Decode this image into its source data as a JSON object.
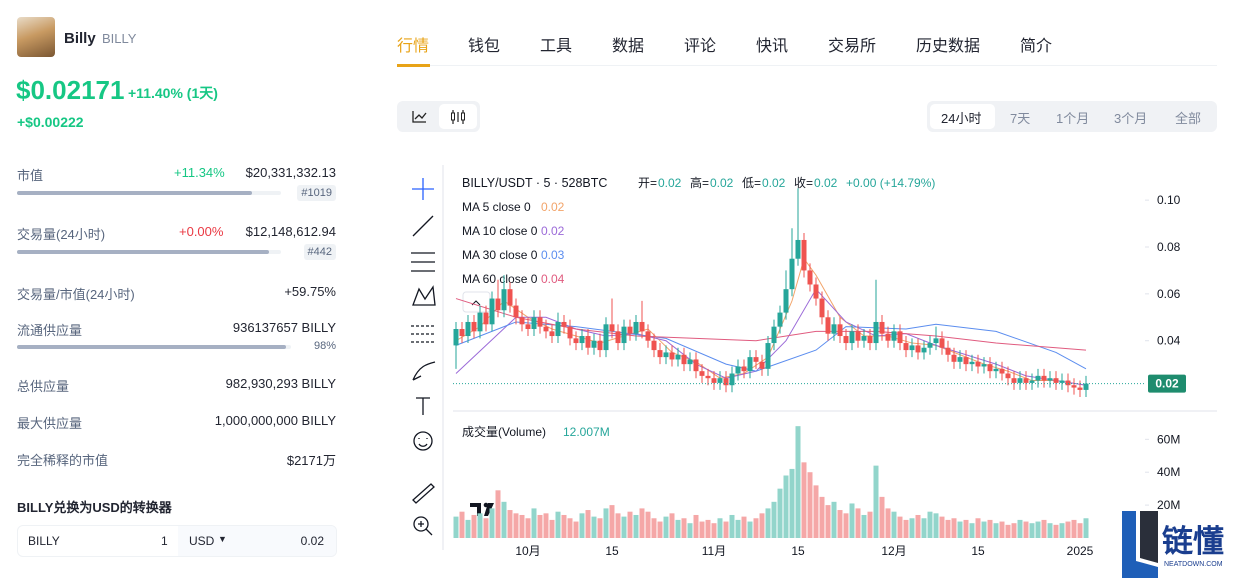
{
  "coin": {
    "name": "Billy",
    "symbol": "BILLY",
    "price": "$0.02171",
    "change": "+11.40% (1天)",
    "change_abs": "+$0.00222"
  },
  "stats": [
    {
      "label": "市值",
      "change": "+11.34%",
      "value": "$20,331,332.13",
      "rank": "#1019"
    },
    {
      "label": "交易量(24小时)",
      "change": "+0.00%",
      "value": "$12,148,612.94",
      "rank": "#442"
    },
    {
      "label": "交易量/市值(24小时)",
      "value": "+59.75%"
    },
    {
      "label": "流通供应量",
      "value": "936137657 BILLY",
      "percent": {
        "value": 98,
        "label": "98%"
      }
    },
    {
      "label": "总供应量",
      "value": "982,930,293 BILLY"
    },
    {
      "label": "最大供应量",
      "value": "1,000,000,000 BILLY"
    },
    {
      "label": "完全稀释的市值",
      "value": "$2171万"
    }
  ],
  "converter": {
    "title": "BILLY兑换为USD的转换器",
    "from": "BILLY",
    "amount": "1",
    "to": "USD",
    "result": "0.02"
  },
  "tabs": [
    "行情",
    "钱包",
    "工具",
    "数据",
    "评论",
    "快讯",
    "交易所",
    "历史数据",
    "简介"
  ],
  "ranges": [
    "24小时",
    "7天",
    "1个月",
    "3个月",
    "全部"
  ],
  "watermark": {
    "title": "链懂",
    "sub": "NEATDOWN.COM"
  },
  "chart_data": {
    "type": "candlestick",
    "title": "BILLY/USDT · 5 · 528BTC",
    "ohlc": [
      {
        "label": "开=",
        "value": "0.02"
      },
      {
        "label": "高=",
        "value": "0.02"
      },
      {
        "label": "低=",
        "value": "0.02"
      },
      {
        "label": "收=",
        "value": "0.02"
      }
    ],
    "change": "+0.00 (+14.79%)",
    "last_label": "0.02",
    "up_color": "#26a69a",
    "down_color": "#ef5350",
    "volume_up_color": "#92d5cb",
    "volume_down_color": "#f5a7a7",
    "ylim": [
      0.01,
      0.115
    ],
    "yticks": [
      {
        "value": 0.1,
        "label": "0.10"
      },
      0.08,
      0.06,
      0.04
    ],
    "categories": [
      null,
      null,
      null,
      null,
      null,
      null,
      null,
      null,
      null,
      null,
      null,
      null,
      "10月",
      null,
      null,
      null,
      null,
      null,
      null,
      null,
      null,
      null,
      null,
      null,
      null,
      null,
      "15",
      null,
      null,
      null,
      null,
      null,
      null,
      null,
      null,
      null,
      null,
      null,
      null,
      null,
      null,
      null,
      null,
      "11月",
      null,
      null,
      null,
      null,
      null,
      null,
      null,
      null,
      null,
      null,
      null,
      null,
      null,
      "15",
      null,
      null,
      null,
      null,
      null,
      null,
      null,
      null,
      null,
      null,
      null,
      null,
      null,
      null,
      null,
      "12月",
      null,
      null,
      null,
      null,
      null,
      null,
      null,
      null,
      null,
      null,
      null,
      null,
      null,
      "15",
      null,
      null,
      null,
      null,
      null,
      null,
      null,
      null,
      null,
      null,
      null,
      null,
      null,
      null,
      null,
      null,
      "2025",
      null
    ],
    "open": [
      0.038,
      0.045,
      0.042,
      0.048,
      0.044,
      0.052,
      0.047,
      0.058,
      0.053,
      0.062,
      0.055,
      0.05,
      0.047,
      0.045,
      0.05,
      0.046,
      0.044,
      0.042,
      0.048,
      0.046,
      0.041,
      0.039,
      0.042,
      0.037,
      0.04,
      0.036,
      0.047,
      0.044,
      0.039,
      0.046,
      0.043,
      0.048,
      0.044,
      0.04,
      0.036,
      0.033,
      0.035,
      0.032,
      0.034,
      0.03,
      0.032,
      0.027,
      0.025,
      0.024,
      0.022,
      0.024,
      0.021,
      0.026,
      0.029,
      0.027,
      0.033,
      0.031,
      0.028,
      0.039,
      0.046,
      0.052,
      0.062,
      0.075,
      0.083,
      0.07,
      0.064,
      0.058,
      0.05,
      0.043,
      0.047,
      0.042,
      0.039,
      0.044,
      0.04,
      0.042,
      0.039,
      0.048,
      0.043,
      0.04,
      0.044,
      0.039,
      0.036,
      0.038,
      0.035,
      0.037,
      0.039,
      0.041,
      0.037,
      0.034,
      0.031,
      0.033,
      0.03,
      0.031,
      0.029,
      0.03,
      0.027,
      0.028,
      0.026,
      0.024,
      0.022,
      0.024,
      0.022,
      0.023,
      0.025,
      0.023,
      0.024,
      0.022,
      0.023,
      0.021,
      0.02,
      0.019
    ],
    "high": [
      0.048,
      0.048,
      0.051,
      0.051,
      0.055,
      0.055,
      0.061,
      0.066,
      0.068,
      0.065,
      0.058,
      0.053,
      0.05,
      0.053,
      0.053,
      0.049,
      0.047,
      0.052,
      0.051,
      0.049,
      0.044,
      0.045,
      0.045,
      0.043,
      0.043,
      0.05,
      0.058,
      0.047,
      0.049,
      0.049,
      0.051,
      0.057,
      0.047,
      0.043,
      0.039,
      0.038,
      0.038,
      0.037,
      0.037,
      0.035,
      0.035,
      0.03,
      0.028,
      0.027,
      0.027,
      0.027,
      0.029,
      0.032,
      0.032,
      0.036,
      0.036,
      0.034,
      0.042,
      0.049,
      0.055,
      0.07,
      0.088,
      0.105,
      0.086,
      0.073,
      0.067,
      0.061,
      0.053,
      0.05,
      0.05,
      0.045,
      0.047,
      0.047,
      0.045,
      0.045,
      0.066,
      0.051,
      0.046,
      0.047,
      0.047,
      0.042,
      0.041,
      0.041,
      0.04,
      0.042,
      0.046,
      0.044,
      0.04,
      0.037,
      0.036,
      0.036,
      0.034,
      0.034,
      0.033,
      0.033,
      0.031,
      0.031,
      0.029,
      0.027,
      0.027,
      0.027,
      0.026,
      0.028,
      0.028,
      0.027,
      0.027,
      0.026,
      0.026,
      0.024,
      0.023,
      0.025
    ],
    "low": [
      0.028,
      0.039,
      0.039,
      0.041,
      0.041,
      0.044,
      0.044,
      0.05,
      0.05,
      0.052,
      0.047,
      0.044,
      0.042,
      0.042,
      0.043,
      0.041,
      0.039,
      0.039,
      0.043,
      0.038,
      0.036,
      0.036,
      0.034,
      0.034,
      0.033,
      0.033,
      0.041,
      0.036,
      0.036,
      0.04,
      0.04,
      0.041,
      0.037,
      0.033,
      0.03,
      0.03,
      0.029,
      0.029,
      0.027,
      0.027,
      0.024,
      0.022,
      0.021,
      0.019,
      0.019,
      0.018,
      0.018,
      0.023,
      0.024,
      0.024,
      0.028,
      0.025,
      0.025,
      0.036,
      0.043,
      0.049,
      0.059,
      0.072,
      0.067,
      0.061,
      0.055,
      0.047,
      0.04,
      0.04,
      0.039,
      0.036,
      0.036,
      0.037,
      0.037,
      0.036,
      0.036,
      0.04,
      0.037,
      0.037,
      0.036,
      0.033,
      0.033,
      0.032,
      0.032,
      0.034,
      0.036,
      0.034,
      0.031,
      0.028,
      0.028,
      0.027,
      0.027,
      0.026,
      0.026,
      0.024,
      0.024,
      0.023,
      0.021,
      0.019,
      0.019,
      0.019,
      0.019,
      0.02,
      0.02,
      0.02,
      0.019,
      0.019,
      0.018,
      0.017,
      0.016,
      0.016
    ],
    "close": [
      0.045,
      0.042,
      0.048,
      0.044,
      0.052,
      0.047,
      0.058,
      0.053,
      0.062,
      0.055,
      0.05,
      0.047,
      0.045,
      0.05,
      0.046,
      0.044,
      0.042,
      0.048,
      0.046,
      0.041,
      0.039,
      0.042,
      0.037,
      0.04,
      0.036,
      0.047,
      0.044,
      0.039,
      0.046,
      0.043,
      0.048,
      0.044,
      0.04,
      0.036,
      0.033,
      0.035,
      0.032,
      0.034,
      0.03,
      0.032,
      0.027,
      0.025,
      0.024,
      0.022,
      0.024,
      0.021,
      0.026,
      0.029,
      0.027,
      0.033,
      0.031,
      0.028,
      0.039,
      0.046,
      0.052,
      0.062,
      0.075,
      0.083,
      0.07,
      0.064,
      0.058,
      0.05,
      0.043,
      0.047,
      0.042,
      0.039,
      0.044,
      0.04,
      0.042,
      0.039,
      0.048,
      0.043,
      0.04,
      0.044,
      0.039,
      0.036,
      0.038,
      0.035,
      0.037,
      0.039,
      0.041,
      0.037,
      0.034,
      0.031,
      0.033,
      0.03,
      0.031,
      0.029,
      0.03,
      0.027,
      0.028,
      0.026,
      0.024,
      0.022,
      0.024,
      0.022,
      0.023,
      0.025,
      0.023,
      0.024,
      0.022,
      0.023,
      0.021,
      0.02,
      0.019,
      0.0217
    ],
    "ma": [
      {
        "name": "MA 5 close 0",
        "last": 0.02,
        "color": "#f2a46a",
        "x": [
          0,
          4,
          8,
          12,
          16,
          20,
          24,
          28,
          32,
          36,
          40,
          44,
          48,
          52,
          56,
          58,
          60,
          64,
          68,
          72,
          76,
          80,
          84,
          88,
          92,
          96,
          100,
          105
        ],
        "values": [
          0.04,
          0.046,
          0.057,
          0.05,
          0.045,
          0.042,
          0.039,
          0.042,
          0.045,
          0.035,
          0.031,
          0.024,
          0.026,
          0.033,
          0.057,
          0.075,
          0.068,
          0.05,
          0.042,
          0.042,
          0.039,
          0.038,
          0.034,
          0.03,
          0.027,
          0.023,
          0.023,
          0.021
        ]
      },
      {
        "name": "MA 10 close 0",
        "last": 0.02,
        "color": "#9b6ad8",
        "x": [
          0,
          5,
          10,
          15,
          20,
          25,
          30,
          35,
          40,
          45,
          50,
          55,
          60,
          65,
          70,
          75,
          80,
          85,
          90,
          95,
          100,
          105
        ],
        "values": [
          0.026,
          0.038,
          0.05,
          0.05,
          0.045,
          0.042,
          0.043,
          0.04,
          0.03,
          0.024,
          0.027,
          0.04,
          0.062,
          0.048,
          0.042,
          0.043,
          0.038,
          0.034,
          0.03,
          0.025,
          0.023,
          0.021
        ]
      },
      {
        "name": "MA 30 close 0",
        "last": 0.03,
        "color": "#5b8def",
        "x": [
          0,
          10,
          20,
          35,
          45,
          50,
          60,
          65,
          75,
          80,
          90,
          100,
          105
        ],
        "values": [
          0.038,
          0.048,
          0.046,
          0.041,
          0.03,
          0.027,
          0.036,
          0.046,
          0.045,
          0.047,
          0.044,
          0.035,
          0.028
        ]
      },
      {
        "name": "MA 60 close 0",
        "last": 0.04,
        "color": "#e05b7f",
        "x": [
          0,
          10,
          20,
          30,
          40,
          50,
          60,
          70,
          80,
          90,
          100,
          105
        ],
        "values": [
          0.058,
          0.05,
          0.045,
          0.042,
          0.041,
          0.04,
          0.044,
          0.044,
          0.042,
          0.039,
          0.037,
          0.036
        ]
      }
    ],
    "volume": {
      "name": "成交量(Volume)",
      "last": "12.007M",
      "ylim": [
        0,
        76000000
      ],
      "yticks": [
        {
          "value": 60000000,
          "label": "60M"
        },
        {
          "value": 40000000,
          "label": "40M"
        },
        {
          "value": 20000000,
          "label": "20M"
        }
      ],
      "values": [
        13000000,
        16000000,
        11000000,
        14000000,
        15000000,
        12000000,
        18000000,
        29000000,
        22000000,
        17000000,
        15000000,
        14000000,
        12000000,
        18000000,
        14000000,
        15000000,
        11000000,
        16000000,
        14000000,
        12000000,
        10000000,
        15000000,
        17000000,
        13000000,
        12000000,
        18000000,
        20000000,
        15000000,
        13000000,
        16000000,
        14000000,
        18000000,
        16000000,
        12000000,
        10000000,
        13000000,
        15000000,
        11000000,
        12000000,
        9000000,
        14000000,
        10000000,
        11000000,
        9000000,
        12000000,
        10000000,
        14000000,
        11000000,
        13000000,
        10000000,
        12000000,
        15000000,
        18000000,
        22000000,
        30000000,
        38000000,
        42000000,
        68000000,
        46000000,
        40000000,
        32000000,
        25000000,
        20000000,
        22000000,
        17000000,
        15000000,
        21000000,
        18000000,
        14000000,
        16000000,
        44000000,
        25000000,
        18000000,
        16000000,
        13000000,
        11000000,
        12000000,
        14000000,
        12000000,
        16000000,
        15000000,
        13000000,
        11000000,
        12000000,
        10000000,
        11000000,
        9000000,
        12000000,
        10000000,
        11000000,
        9000000,
        10000000,
        8000000,
        9000000,
        11000000,
        10000000,
        9000000,
        10000000,
        11000000,
        9000000,
        8000000,
        9000000,
        10000000,
        11000000,
        9000000,
        12000000
      ]
    }
  }
}
